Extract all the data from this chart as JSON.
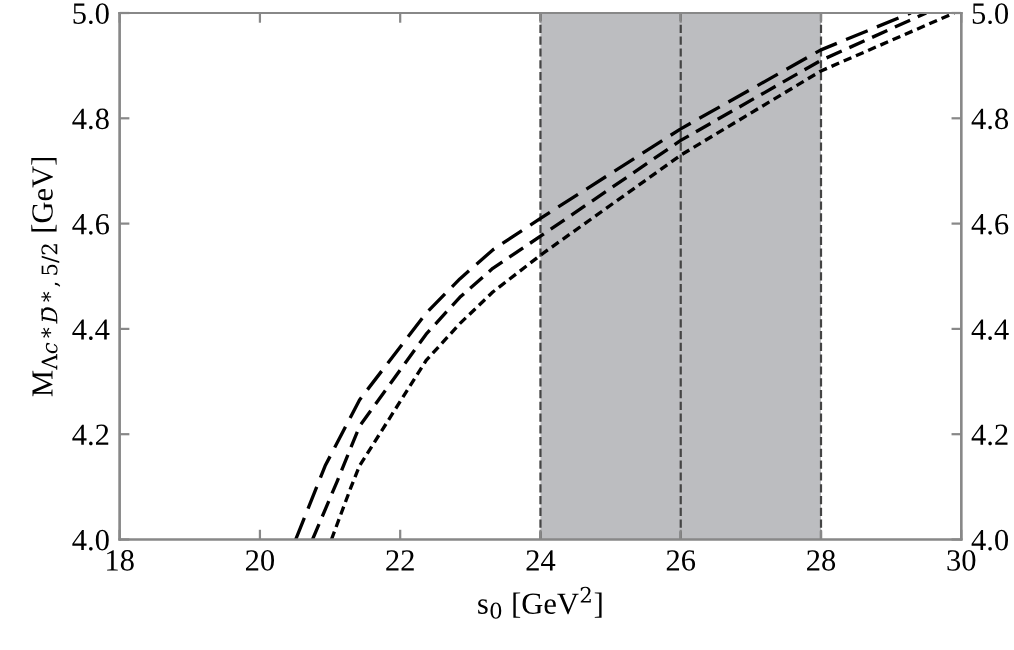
{
  "chart_data": {
    "type": "line",
    "xlabel": "s$_{0}$ [GeV$^{2}$]",
    "ylabel": "M$_{Λc*D̄*,5/2}$ [GeV]",
    "series": [
      {
        "color": "#000000",
        "line_style": "dashed",
        "x": [
          20.51,
          20.93,
          21.42,
          22.37,
          22.85,
          23.32,
          24,
          26,
          28,
          29.28
        ],
        "values": [
          4.0,
          4.14,
          4.265,
          4.43,
          4.495,
          4.55,
          4.61,
          4.78,
          4.93,
          5.0
        ]
      },
      {
        "color": "#000000",
        "line_style": "dashed",
        "x": [
          20.75,
          21.1,
          21.42,
          22.37,
          22.85,
          23.32,
          24,
          26,
          28,
          29.5
        ],
        "values": [
          4.0,
          4.11,
          4.215,
          4.39,
          4.46,
          4.515,
          4.576,
          4.758,
          4.91,
          5.0
        ]
      },
      {
        "color": "#000000",
        "line_style": "dashed",
        "x": [
          21.02,
          21.3,
          21.42,
          22.37,
          22.85,
          23.32,
          24,
          26,
          28,
          29.9
        ],
        "values": [
          4.0,
          4.1,
          4.14,
          4.34,
          4.41,
          4.47,
          4.54,
          4.73,
          4.89,
          5.0
        ]
      }
    ],
    "xlim": [
      18,
      30
    ],
    "xticks": [
      18,
      20,
      22,
      24,
      26,
      28,
      30
    ],
    "ylim": [
      4.0,
      5.0
    ],
    "yticks": [
      {
        "value": 4.0,
        "label": "4.0"
      },
      4.2,
      4.4,
      4.6,
      4.8,
      {
        "value": 5.0,
        "label": "5.0"
      }
    ],
    "y2lim": [
      4.0,
      5.0
    ],
    "y2ticks": [
      {
        "value": 4.0,
        "label": "4.0"
      },
      4.2,
      4.4,
      4.6,
      4.8,
      {
        "value": 5.0,
        "label": "5.0"
      }
    ],
    "bands": [
      {
        "axis": "x",
        "from": 24,
        "to": 28,
        "color": "#bcbdc0"
      }
    ],
    "ref_lines": [
      {
        "axis": "x",
        "value": 24,
        "color": "#444444",
        "line_style": "dashed"
      },
      {
        "axis": "x",
        "value": 26,
        "color": "#444444",
        "line_style": "dashed"
      },
      {
        "axis": "x",
        "value": 28,
        "color": "#444444",
        "line_style": "dashed"
      }
    ],
    "grid": false
  }
}
